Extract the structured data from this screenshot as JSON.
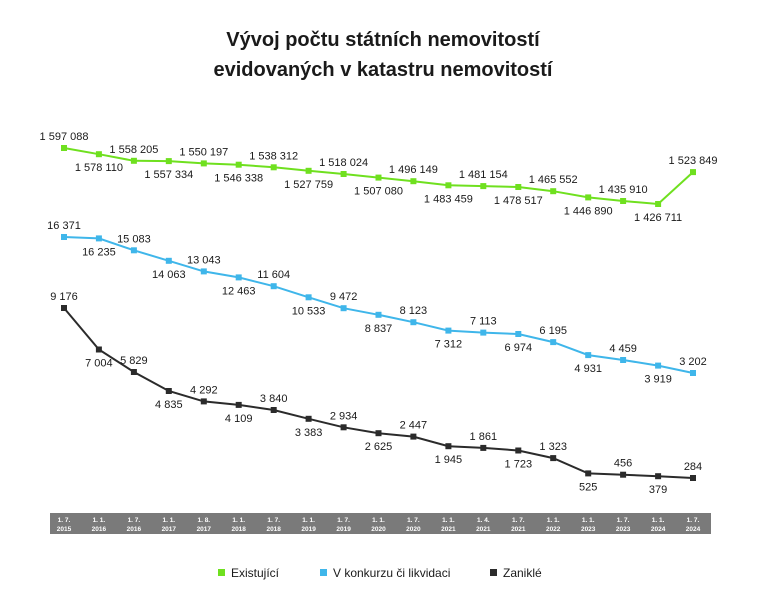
{
  "chart_data": {
    "type": "line",
    "title_lines": [
      "Vývoj počtu státních nemovitostí",
      "evidovaných v katastru nemovitostí"
    ],
    "categories": [
      [
        "1. 7.",
        "2015"
      ],
      [
        "1. 1.",
        "2016"
      ],
      [
        "1. 7.",
        "2016"
      ],
      [
        "1. 1.",
        "2017"
      ],
      [
        "1. 8.",
        "2017"
      ],
      [
        "1. 1.",
        "2018"
      ],
      [
        "1. 7.",
        "2018"
      ],
      [
        "1. 1.",
        "2019"
      ],
      [
        "1. 7.",
        "2019"
      ],
      [
        "1. 1.",
        "2020"
      ],
      [
        "1. 7.",
        "2020"
      ],
      [
        "1. 1.",
        "2021"
      ],
      [
        "1. 4.",
        "2021"
      ],
      [
        "1. 7.",
        "2021"
      ],
      [
        "1. 1.",
        "2022"
      ],
      [
        "1. 1.",
        "2023"
      ],
      [
        "1. 7.",
        "2023"
      ],
      [
        "1. 1.",
        "2024"
      ],
      [
        "1. 7.",
        "2024"
      ]
    ],
    "series": [
      {
        "name": "Existující",
        "color": "#6fe01f",
        "values": [
          1597088,
          1578110,
          1558205,
          1557334,
          1550197,
          1546338,
          1538312,
          1527759,
          1518024,
          1507080,
          1496149,
          1483459,
          1481154,
          1478517,
          1465552,
          1446890,
          1435910,
          1426711,
          1523849
        ],
        "labels": [
          "1 597 088",
          "1 578 110",
          "1 558 205",
          "1 557 334",
          "1 550 197",
          "1 546 338",
          "1 538 312",
          "1 527 759",
          "1 518 024",
          "1 507 080",
          "1 496 149",
          "1 483 459",
          "1 481 154",
          "1 478 517",
          "1 465 552",
          "1 446 890",
          "1 435 910",
          "1 426 711",
          "1 523 849"
        ],
        "label_side": [
          "above",
          "below",
          "above",
          "below",
          "above",
          "below",
          "above",
          "below",
          "above",
          "below",
          "above",
          "below",
          "above",
          "below",
          "above",
          "below",
          "above",
          "below",
          "above"
        ]
      },
      {
        "name": "V konkurzu či likvidaci",
        "color": "#3fb6ea",
        "values": [
          16371,
          16235,
          15083,
          14063,
          13043,
          12463,
          11604,
          10533,
          9472,
          8837,
          8123,
          7312,
          7113,
          6974,
          6195,
          4931,
          4459,
          3919,
          3202
        ],
        "labels": [
          "16 371",
          "16 235",
          "15 083",
          "14 063",
          "13 043",
          "12 463",
          "11 604",
          "10 533",
          "9 472",
          "8 837",
          "8 123",
          "7 312",
          "7 113",
          "6 974",
          "6 195",
          "4 931",
          "4 459",
          "3 919",
          "3 202"
        ],
        "label_side": [
          "above",
          "below",
          "above",
          "below",
          "above",
          "below",
          "above",
          "below",
          "above",
          "below",
          "above",
          "below",
          "above",
          "below",
          "above",
          "below",
          "above",
          "below",
          "above"
        ]
      },
      {
        "name": "Zaniklé",
        "color": "#2b2b2b",
        "values": [
          9176,
          7004,
          5829,
          4835,
          4292,
          4109,
          3840,
          3383,
          2934,
          2625,
          2447,
          1945,
          1861,
          1723,
          1323,
          525,
          456,
          379,
          284
        ],
        "labels": [
          "9 176",
          "7 004",
          "5 829",
          "4 835",
          "4 292",
          "4 109",
          "3 840",
          "3 383",
          "2 934",
          "2 625",
          "2 447",
          "1 945",
          "1 861",
          "1 723",
          "1 323",
          "525",
          "456",
          "379",
          "284"
        ],
        "label_side": [
          "above",
          "below",
          "above",
          "below",
          "above",
          "below",
          "above",
          "below",
          "above",
          "below",
          "above",
          "below",
          "above",
          "below",
          "above",
          "below",
          "above",
          "below",
          "above"
        ]
      }
    ],
    "axis_bar_color": "#7a7a7a",
    "legend_position": "bottom"
  }
}
